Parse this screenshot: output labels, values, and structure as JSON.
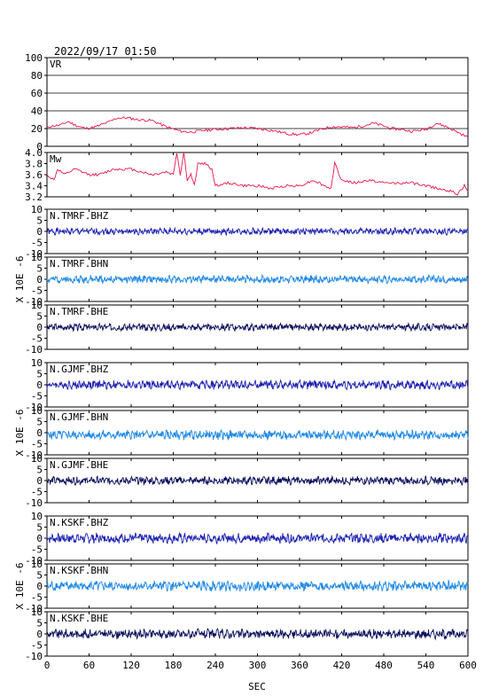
{
  "chart_data": {
    "type": "line",
    "title": "2022/09/17  01:50",
    "xlabel": "SEC",
    "xlim": [
      0,
      600
    ],
    "xticks": [
      0,
      60,
      120,
      180,
      240,
      300,
      360,
      420,
      480,
      540,
      600
    ],
    "panels": [
      {
        "key": "vr",
        "label": "VR",
        "ylim": [
          0,
          100
        ],
        "yticks": [
          "0",
          "20",
          "40",
          "60",
          "80",
          "100"
        ],
        "tick_values": [
          0,
          20,
          40,
          60,
          80,
          100
        ],
        "grid": true,
        "color": "#e8174c",
        "points": [
          [
            0,
            22
          ],
          [
            20,
            24
          ],
          [
            30,
            28
          ],
          [
            40,
            24
          ],
          [
            55,
            20
          ],
          [
            70,
            22
          ],
          [
            90,
            28
          ],
          [
            100,
            32
          ],
          [
            115,
            32
          ],
          [
            130,
            30
          ],
          [
            150,
            29
          ],
          [
            170,
            22
          ],
          [
            190,
            17
          ],
          [
            205,
            16
          ],
          [
            225,
            18
          ],
          [
            240,
            19
          ],
          [
            260,
            20
          ],
          [
            280,
            21
          ],
          [
            300,
            20
          ],
          [
            320,
            18
          ],
          [
            345,
            14
          ],
          [
            360,
            13
          ],
          [
            375,
            15
          ],
          [
            390,
            19
          ],
          [
            405,
            22
          ],
          [
            420,
            22
          ],
          [
            435,
            21
          ],
          [
            450,
            23
          ],
          [
            465,
            26
          ],
          [
            480,
            23
          ],
          [
            490,
            20
          ],
          [
            505,
            19
          ],
          [
            520,
            17
          ],
          [
            540,
            19
          ],
          [
            555,
            26
          ],
          [
            570,
            22
          ],
          [
            585,
            16
          ],
          [
            595,
            12
          ],
          [
            600,
            10
          ]
        ]
      },
      {
        "key": "mw",
        "label": "Mw",
        "ylim": [
          3.2,
          4.0
        ],
        "yticks": [
          "3.2",
          "3.4",
          "3.6",
          "3.8",
          "4.0"
        ],
        "tick_values": [
          3.2,
          3.4,
          3.6,
          3.8,
          4.0
        ],
        "grid": false,
        "color": "#e8174c",
        "points": [
          [
            0,
            3.6
          ],
          [
            10,
            3.5
          ],
          [
            15,
            3.7
          ],
          [
            25,
            3.6
          ],
          [
            40,
            3.7
          ],
          [
            60,
            3.6
          ],
          [
            75,
            3.6
          ],
          [
            95,
            3.7
          ],
          [
            120,
            3.7
          ],
          [
            150,
            3.6
          ],
          [
            170,
            3.65
          ],
          [
            180,
            3.6
          ],
          [
            185,
            4.0
          ],
          [
            190,
            3.6
          ],
          [
            195,
            4.0
          ],
          [
            200,
            3.5
          ],
          [
            205,
            3.6
          ],
          [
            210,
            3.4
          ],
          [
            215,
            3.8
          ],
          [
            225,
            3.8
          ],
          [
            235,
            3.7
          ],
          [
            240,
            3.4
          ],
          [
            260,
            3.45
          ],
          [
            280,
            3.4
          ],
          [
            300,
            3.4
          ],
          [
            320,
            3.35
          ],
          [
            340,
            3.4
          ],
          [
            360,
            3.4
          ],
          [
            380,
            3.5
          ],
          [
            395,
            3.4
          ],
          [
            405,
            3.35
          ],
          [
            410,
            3.8
          ],
          [
            420,
            3.5
          ],
          [
            440,
            3.45
          ],
          [
            460,
            3.5
          ],
          [
            480,
            3.45
          ],
          [
            500,
            3.45
          ],
          [
            520,
            3.45
          ],
          [
            540,
            3.4
          ],
          [
            560,
            3.35
          ],
          [
            575,
            3.3
          ],
          [
            585,
            3.25
          ],
          [
            595,
            3.4
          ],
          [
            600,
            3.3
          ]
        ]
      },
      {
        "key": "tmrf_bhz",
        "label": "N.TMRF.BHZ",
        "ylim": [
          -10,
          10
        ],
        "yticks": [
          "-10",
          "-5",
          "0",
          "5",
          "10"
        ],
        "tick_values": [
          -10,
          -5,
          0,
          5,
          10
        ],
        "grid": false,
        "color": "#1b1fb0",
        "amp": 1.2,
        "offset": 0,
        "seed": 1
      },
      {
        "key": "tmrf_bhn",
        "label": "N.TMRF.BHN",
        "ylim": [
          -10,
          10
        ],
        "yticks": [
          "-10",
          "-5",
          "0",
          "5",
          "10"
        ],
        "tick_values": [
          -10,
          -5,
          0,
          5,
          10
        ],
        "grid": false,
        "color": "#1e88e5",
        "amp": 1.4,
        "offset": 0,
        "seed": 2
      },
      {
        "key": "tmrf_bhe",
        "label": "N.TMRF.BHE",
        "ylim": [
          -10,
          10
        ],
        "yticks": [
          "-10",
          "-5",
          "0",
          "5",
          "10"
        ],
        "tick_values": [
          -10,
          -5,
          0,
          5,
          10
        ],
        "grid": false,
        "color": "#0b0f5c",
        "amp": 1.3,
        "offset": 0,
        "seed": 3
      },
      {
        "key": "gjmf_bhz",
        "label": "N.GJMF.BHZ",
        "ylim": [
          -10,
          10
        ],
        "yticks": [
          "-10",
          "-5",
          "0",
          "5",
          "10"
        ],
        "tick_values": [
          -10,
          -5,
          0,
          5,
          10
        ],
        "grid": false,
        "color": "#1b1fb0",
        "amp": 1.6,
        "offset": 0,
        "seed": 4
      },
      {
        "key": "gjmf_bhn",
        "label": "N.GJMF.BHN",
        "ylim": [
          -10,
          10
        ],
        "yticks": [
          "-10",
          "-5",
          "0",
          "5",
          "10"
        ],
        "tick_values": [
          -10,
          -5,
          0,
          5,
          10
        ],
        "grid": false,
        "color": "#1e88e5",
        "amp": 1.7,
        "offset": -1,
        "seed": 5
      },
      {
        "key": "gjmf_bhe",
        "label": "N.GJMF.BHE",
        "ylim": [
          -10,
          10
        ],
        "yticks": [
          "-10",
          "-5",
          "0",
          "5",
          "10"
        ],
        "tick_values": [
          -10,
          -5,
          0,
          5,
          10
        ],
        "grid": false,
        "color": "#0b0f5c",
        "amp": 1.5,
        "offset": 0,
        "seed": 6
      },
      {
        "key": "kskf_bhz",
        "label": "N.KSKF.BHZ",
        "ylim": [
          -10,
          10
        ],
        "yticks": [
          "-10",
          "-5",
          "0",
          "5",
          "10"
        ],
        "tick_values": [
          -10,
          -5,
          0,
          5,
          10
        ],
        "grid": false,
        "color": "#1b1fb0",
        "amp": 1.8,
        "offset": 0,
        "seed": 7
      },
      {
        "key": "kskf_bhn",
        "label": "N.KSKF.BHN",
        "ylim": [
          -10,
          10
        ],
        "yticks": [
          "-10",
          "-5",
          "0",
          "5",
          "10"
        ],
        "tick_values": [
          -10,
          -5,
          0,
          5,
          10
        ],
        "grid": false,
        "color": "#1e88e5",
        "amp": 1.8,
        "offset": 0,
        "seed": 8
      },
      {
        "key": "kskf_bhe",
        "label": "N.KSKF.BHE",
        "ylim": [
          -10,
          10
        ],
        "yticks": [
          "-10",
          "-5",
          "0",
          "5",
          "10"
        ],
        "tick_values": [
          -10,
          -5,
          0,
          5,
          10
        ],
        "grid": false,
        "color": "#0b0f5c",
        "amp": 1.7,
        "offset": 0,
        "seed": 9
      }
    ],
    "ylabels": [
      {
        "text": "X 10E -6",
        "panels": [
          2,
          4
        ]
      },
      {
        "text": "X 10E -6",
        "panels": [
          5,
          7
        ]
      },
      {
        "text": "X 10E -6",
        "panels": [
          8,
          10
        ]
      }
    ]
  }
}
